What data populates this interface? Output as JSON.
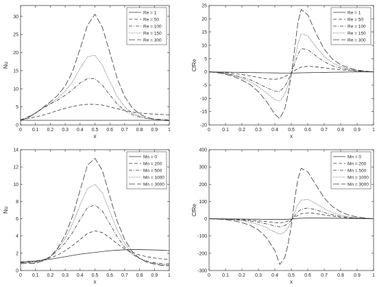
{
  "chart_data": [
    {
      "type": "line",
      "xlabel": "x",
      "ylabel": "Nu",
      "xlim": [
        0,
        1
      ],
      "ylim": [
        0,
        33
      ],
      "xticks": [
        0,
        0.1,
        0.2,
        0.3,
        0.4,
        0.5,
        0.6,
        0.7,
        0.8,
        0.9,
        1
      ],
      "yticks": [
        0,
        5,
        10,
        15,
        20,
        25,
        30
      ],
      "legend_position": "top-right",
      "x": [
        0,
        0.05,
        0.1,
        0.15,
        0.2,
        0.25,
        0.3,
        0.35,
        0.4,
        0.45,
        0.5,
        0.55,
        0.6,
        0.65,
        0.7,
        0.75,
        0.8,
        0.85,
        0.9,
        0.95,
        1
      ],
      "series": [
        {
          "name": "Re = 1",
          "style": "solid",
          "values": [
            1.3,
            1.3,
            1.3,
            1.3,
            1.3,
            1.3,
            1.3,
            1.3,
            1.3,
            1.3,
            1.3,
            1.3,
            1.3,
            1.3,
            1.3,
            1.3,
            1.3,
            1.3,
            1.3,
            1.3,
            1.3
          ]
        },
        {
          "name": "Re = 50",
          "style": "dashed",
          "values": [
            1.4,
            1.8,
            2.2,
            2.7,
            3.3,
            4.0,
            4.6,
            5.1,
            5.5,
            5.7,
            5.7,
            5.5,
            5.0,
            4.5,
            4.0,
            3.6,
            3.3,
            3.1,
            3.0,
            2.9,
            2.8
          ]
        },
        {
          "name": "Re = 100",
          "style": "dashdot",
          "values": [
            1.4,
            2.2,
            3.3,
            4.6,
            5.8,
            6.9,
            8.2,
            9.8,
            11.6,
            12.8,
            12.8,
            11.0,
            8.3,
            5.8,
            4.0,
            2.9,
            2.2,
            1.8,
            1.6,
            1.5,
            1.4
          ]
        },
        {
          "name": "Re = 150",
          "style": "dotted",
          "values": [
            1.2,
            2.1,
            3.3,
            4.7,
            6.0,
            7.4,
            9.3,
            12.0,
            15.6,
            18.8,
            19.3,
            16.5,
            12.0,
            7.8,
            5.0,
            3.3,
            2.4,
            1.8,
            1.5,
            1.3,
            1.2
          ]
        },
        {
          "name": "Re = 300",
          "style": "longdash",
          "values": [
            1.2,
            2.0,
            3.2,
            4.8,
            6.4,
            8.2,
            10.8,
            14.8,
            21.0,
            27.5,
            30.6,
            27.0,
            20.0,
            12.8,
            7.8,
            4.8,
            3.0,
            2.1,
            1.6,
            1.3,
            1.2
          ]
        }
      ]
    },
    {
      "type": "line",
      "xlabel": "x",
      "ylabel": "CfRe",
      "xlim": [
        0,
        1
      ],
      "ylim": [
        -20,
        25
      ],
      "xticks": [
        0,
        0.1,
        0.2,
        0.3,
        0.4,
        0.5,
        0.6,
        0.7,
        0.8,
        0.9,
        1
      ],
      "yticks": [
        -20,
        -15,
        -10,
        -5,
        0,
        5,
        10,
        15,
        20,
        25
      ],
      "legend_position": "top-right",
      "x": [
        0,
        0.05,
        0.1,
        0.15,
        0.2,
        0.25,
        0.3,
        0.35,
        0.4,
        0.43,
        0.46,
        0.48,
        0.5,
        0.52,
        0.54,
        0.56,
        0.6,
        0.65,
        0.7,
        0.75,
        0.8,
        0.85,
        0.9,
        0.95,
        1
      ],
      "series": [
        {
          "name": "Re = 1",
          "style": "solid",
          "values": [
            0,
            -0.05,
            -0.1,
            -0.15,
            -0.2,
            -0.25,
            -0.3,
            -0.35,
            -0.4,
            -0.45,
            -0.5,
            -0.5,
            -0.5,
            -0.45,
            -0.4,
            -0.35,
            -0.3,
            -0.25,
            -0.2,
            -0.15,
            -0.1,
            -0.05,
            0,
            0,
            0
          ]
        },
        {
          "name": "Re = 50",
          "style": "dashed",
          "values": [
            0,
            -0.1,
            -0.3,
            -0.6,
            -1.0,
            -1.5,
            -2.1,
            -2.6,
            -2.8,
            -2.5,
            -1.8,
            -1.1,
            -0.3,
            0.5,
            1.2,
            1.8,
            2.1,
            1.9,
            1.5,
            1.1,
            0.8,
            0.5,
            0.3,
            0.1,
            0
          ]
        },
        {
          "name": "Re = 100",
          "style": "dashdot",
          "values": [
            0,
            -0.2,
            -0.6,
            -1.2,
            -2.0,
            -3.0,
            -4.4,
            -6.0,
            -7.3,
            -7.4,
            -5.5,
            -3.2,
            -0.5,
            3.0,
            6.5,
            8.8,
            8.4,
            6.0,
            3.8,
            2.3,
            1.4,
            0.8,
            0.4,
            0.2,
            0
          ]
        },
        {
          "name": "Re = 150",
          "style": "dotted",
          "values": [
            0,
            -0.2,
            -0.7,
            -1.4,
            -2.4,
            -3.7,
            -5.6,
            -8.0,
            -10.5,
            -11.0,
            -8.5,
            -5.0,
            -1.0,
            4.5,
            10.5,
            14.3,
            13.6,
            9.4,
            5.8,
            3.4,
            2.0,
            1.1,
            0.5,
            0.2,
            0
          ]
        },
        {
          "name": "Re = 300",
          "style": "longdash",
          "values": [
            0,
            -0.3,
            -0.9,
            -1.8,
            -3.1,
            -4.8,
            -7.5,
            -11.2,
            -16.0,
            -17.6,
            -14.0,
            -8.5,
            -1.0,
            8.5,
            18.5,
            23.5,
            21.5,
            14.5,
            8.5,
            4.8,
            2.7,
            1.5,
            0.7,
            0.3,
            0
          ]
        }
      ]
    },
    {
      "type": "line",
      "xlabel": "x",
      "ylabel": "Nu",
      "xlim": [
        0,
        1
      ],
      "ylim": [
        0,
        14
      ],
      "xticks": [
        0,
        0.1,
        0.2,
        0.3,
        0.4,
        0.5,
        0.6,
        0.7,
        0.8,
        0.9,
        1
      ],
      "yticks": [
        0,
        2,
        4,
        6,
        8,
        10,
        12,
        14
      ],
      "legend_position": "top-right",
      "x": [
        0,
        0.05,
        0.1,
        0.15,
        0.2,
        0.25,
        0.3,
        0.35,
        0.4,
        0.45,
        0.5,
        0.55,
        0.6,
        0.65,
        0.7,
        0.75,
        0.8,
        0.85,
        0.9,
        0.95,
        1
      ],
      "series": [
        {
          "name": "Mn = 0",
          "style": "solid",
          "values": [
            1.0,
            1.05,
            1.1,
            1.2,
            1.3,
            1.45,
            1.6,
            1.75,
            1.9,
            2.0,
            2.1,
            2.2,
            2.3,
            2.35,
            2.4,
            2.42,
            2.42,
            2.4,
            2.38,
            2.35,
            2.3
          ]
        },
        {
          "name": "Mn = 200",
          "style": "dashed",
          "values": [
            1.0,
            1.05,
            1.1,
            1.25,
            1.45,
            1.8,
            2.3,
            2.9,
            3.6,
            4.3,
            4.6,
            4.4,
            3.8,
            3.1,
            2.5,
            2.1,
            1.8,
            1.6,
            1.45,
            1.35,
            1.3
          ]
        },
        {
          "name": "Mn = 500",
          "style": "dashdot",
          "values": [
            0.9,
            0.95,
            1.0,
            1.2,
            1.6,
            2.3,
            3.2,
            4.4,
            5.9,
            7.3,
            7.6,
            6.9,
            5.4,
            3.9,
            2.7,
            1.9,
            1.4,
            1.1,
            0.9,
            0.8,
            0.75
          ]
        },
        {
          "name": "Mn = 1000",
          "style": "dotted",
          "values": [
            0.9,
            0.92,
            0.95,
            1.15,
            1.6,
            2.5,
            3.7,
            5.4,
            7.6,
            9.5,
            10.0,
            9.0,
            6.8,
            4.7,
            3.1,
            2.0,
            1.4,
            1.0,
            0.8,
            0.7,
            0.6
          ]
        },
        {
          "name": "Mn = 3000",
          "style": "longdash",
          "values": [
            0.8,
            0.82,
            0.85,
            1.1,
            1.6,
            2.6,
            4.1,
            6.3,
            9.3,
            12.2,
            13.0,
            11.6,
            8.6,
            5.7,
            3.6,
            2.2,
            1.4,
            0.95,
            0.75,
            0.6,
            0.55
          ]
        }
      ]
    },
    {
      "type": "line",
      "xlabel": "x",
      "ylabel": "CfRe",
      "xlim": [
        0,
        1
      ],
      "ylim": [
        -300,
        400
      ],
      "xticks": [
        0,
        0.1,
        0.2,
        0.3,
        0.4,
        0.5,
        0.6,
        0.7,
        0.8,
        0.9,
        1
      ],
      "yticks": [
        -300,
        -200,
        -100,
        0,
        100,
        200,
        300,
        400
      ],
      "legend_position": "top-right",
      "x": [
        0,
        0.05,
        0.1,
        0.15,
        0.2,
        0.25,
        0.3,
        0.35,
        0.4,
        0.43,
        0.46,
        0.48,
        0.5,
        0.52,
        0.54,
        0.56,
        0.6,
        0.65,
        0.7,
        0.75,
        0.8,
        0.85,
        0.9,
        0.95,
        1
      ],
      "series": [
        {
          "name": "Mn = 0",
          "style": "solid",
          "values": [
            0,
            -0.5,
            -1,
            -1.5,
            -2,
            -2.5,
            -3,
            -3.5,
            -4,
            -4,
            -4,
            -3,
            -2,
            0,
            2,
            3,
            4,
            4,
            3.5,
            3,
            2,
            1.5,
            1,
            0.5,
            0
          ]
        },
        {
          "name": "Mn = 200",
          "style": "dashed",
          "values": [
            0,
            -0.5,
            -1.5,
            -3,
            -5,
            -8,
            -12,
            -17,
            -22,
            -24,
            -20,
            -13,
            -4,
            8,
            20,
            29,
            34,
            30,
            22,
            15,
            9,
            5,
            2.5,
            1,
            0
          ]
        },
        {
          "name": "Mn = 500",
          "style": "dashdot",
          "values": [
            0,
            -1,
            -2.5,
            -5,
            -8,
            -13,
            -20,
            -30,
            -42,
            -47,
            -40,
            -26,
            -8,
            16,
            40,
            56,
            62,
            52,
            36,
            23,
            14,
            7,
            3.5,
            1.5,
            0
          ]
        },
        {
          "name": "Mn = 1000",
          "style": "dotted",
          "values": [
            0,
            -1,
            -3,
            -7,
            -12,
            -20,
            -33,
            -52,
            -78,
            -90,
            -78,
            -52,
            -15,
            35,
            82,
            108,
            112,
            88,
            58,
            36,
            21,
            11,
            5,
            2,
            0
          ]
        },
        {
          "name": "Mn = 3000",
          "style": "longdash",
          "values": [
            0,
            -2,
            -5,
            -12,
            -22,
            -38,
            -65,
            -110,
            -185,
            -265,
            -225,
            -150,
            -40,
            110,
            230,
            292,
            272,
            195,
            120,
            70,
            40,
            21,
            10,
            4,
            0
          ]
        }
      ]
    }
  ]
}
